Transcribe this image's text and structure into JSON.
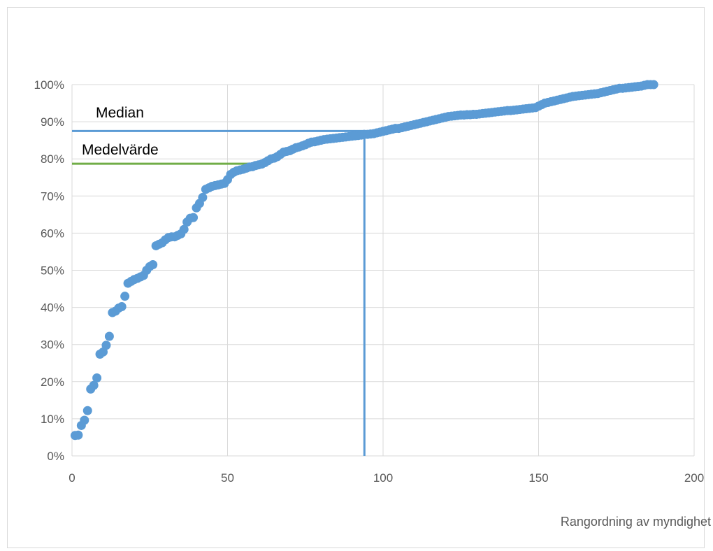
{
  "chart_data": {
    "type": "scatter",
    "xlabel": "Rangordning av myndighet",
    "ylabel": "",
    "xlim": [
      0,
      200
    ],
    "ylim": [
      0,
      1
    ],
    "x_ticks": [
      "0",
      "50",
      "100",
      "150",
      "200"
    ],
    "y_ticks": [
      "0%",
      "10%",
      "20%",
      "30%",
      "40%",
      "50%",
      "60%",
      "70%",
      "80%",
      "90%",
      "100%"
    ],
    "grid": true,
    "legend": "none",
    "colors": {
      "points": "#5b9bd5",
      "median_line": "#5b9bd5",
      "mean_line": "#70ad47",
      "grid": "#d9d9d9"
    },
    "reference_lines": {
      "median": {
        "label": "Median",
        "x_start": 0,
        "x_end": 94,
        "y": 0.875,
        "x_vertical": 94
      },
      "mean": {
        "label": "Medelvärde",
        "x_start": 0,
        "x_end": 60,
        "y": 0.787
      }
    },
    "points_x": [
      1,
      2,
      3,
      4,
      5,
      6,
      7,
      8,
      9,
      10,
      11,
      12,
      13,
      14,
      15,
      16,
      17,
      18,
      19,
      20,
      21,
      22,
      23,
      24,
      25,
      26,
      27,
      28,
      29,
      30,
      31,
      32,
      33,
      34,
      35,
      36,
      37,
      38,
      39,
      40,
      41,
      42,
      43,
      44,
      45,
      46,
      47,
      48,
      49,
      50,
      51,
      52,
      53,
      54,
      55,
      56,
      57,
      58,
      59,
      60,
      61,
      62,
      63,
      64,
      65,
      66,
      67,
      68,
      69,
      70,
      71,
      72,
      73,
      74,
      75,
      76,
      77,
      78,
      79,
      80,
      81,
      82,
      83,
      84,
      85,
      86,
      87,
      88,
      89,
      90,
      91,
      92,
      93,
      94,
      95,
      96,
      97,
      98,
      99,
      100,
      101,
      102,
      103,
      104,
      105,
      106,
      107,
      108,
      109,
      110,
      111,
      112,
      113,
      114,
      115,
      116,
      117,
      118,
      119,
      120,
      121,
      122,
      123,
      124,
      125,
      126,
      127,
      128,
      129,
      130,
      131,
      132,
      133,
      134,
      135,
      136,
      137,
      138,
      139,
      140,
      141,
      142,
      143,
      144,
      145,
      146,
      147,
      148,
      149,
      150,
      151,
      152,
      153,
      154,
      155,
      156,
      157,
      158,
      159,
      160,
      161,
      162,
      163,
      164,
      165,
      166,
      167,
      168,
      169,
      170,
      171,
      172,
      173,
      174,
      175,
      176,
      177,
      178,
      179,
      180,
      181,
      182,
      183,
      184,
      185,
      186,
      187
    ],
    "points_y": [
      0.055,
      0.056,
      0.082,
      0.096,
      0.122,
      0.18,
      0.19,
      0.21,
      0.274,
      0.28,
      0.298,
      0.322,
      0.386,
      0.39,
      0.398,
      0.402,
      0.43,
      0.465,
      0.47,
      0.475,
      0.478,
      0.482,
      0.486,
      0.5,
      0.51,
      0.515,
      0.566,
      0.57,
      0.574,
      0.582,
      0.588,
      0.59,
      0.59,
      0.594,
      0.598,
      0.61,
      0.63,
      0.64,
      0.642,
      0.668,
      0.68,
      0.696,
      0.718,
      0.722,
      0.726,
      0.728,
      0.73,
      0.732,
      0.734,
      0.744,
      0.758,
      0.764,
      0.768,
      0.77,
      0.772,
      0.775,
      0.778,
      0.779,
      0.782,
      0.784,
      0.786,
      0.79,
      0.795,
      0.8,
      0.802,
      0.806,
      0.812,
      0.818,
      0.82,
      0.822,
      0.826,
      0.83,
      0.832,
      0.835,
      0.838,
      0.842,
      0.845,
      0.846,
      0.848,
      0.85,
      0.852,
      0.853,
      0.854,
      0.855,
      0.856,
      0.857,
      0.858,
      0.859,
      0.86,
      0.861,
      0.862,
      0.863,
      0.864,
      0.866,
      0.866,
      0.867,
      0.868,
      0.87,
      0.872,
      0.874,
      0.876,
      0.878,
      0.88,
      0.882,
      0.882,
      0.884,
      0.886,
      0.888,
      0.89,
      0.892,
      0.894,
      0.896,
      0.898,
      0.9,
      0.902,
      0.904,
      0.906,
      0.908,
      0.91,
      0.912,
      0.914,
      0.915,
      0.916,
      0.917,
      0.918,
      0.918,
      0.919,
      0.919,
      0.92,
      0.92,
      0.921,
      0.922,
      0.923,
      0.924,
      0.925,
      0.926,
      0.927,
      0.928,
      0.929,
      0.93,
      0.93,
      0.931,
      0.932,
      0.933,
      0.934,
      0.935,
      0.936,
      0.937,
      0.938,
      0.942,
      0.946,
      0.95,
      0.952,
      0.954,
      0.956,
      0.958,
      0.96,
      0.962,
      0.964,
      0.966,
      0.968,
      0.969,
      0.97,
      0.971,
      0.972,
      0.973,
      0.974,
      0.975,
      0.976,
      0.978,
      0.98,
      0.982,
      0.984,
      0.986,
      0.988,
      0.99,
      0.99,
      0.991,
      0.992,
      0.993,
      0.994,
      0.995,
      0.996,
      0.998,
      1.0,
      1.0,
      1.0
    ]
  }
}
